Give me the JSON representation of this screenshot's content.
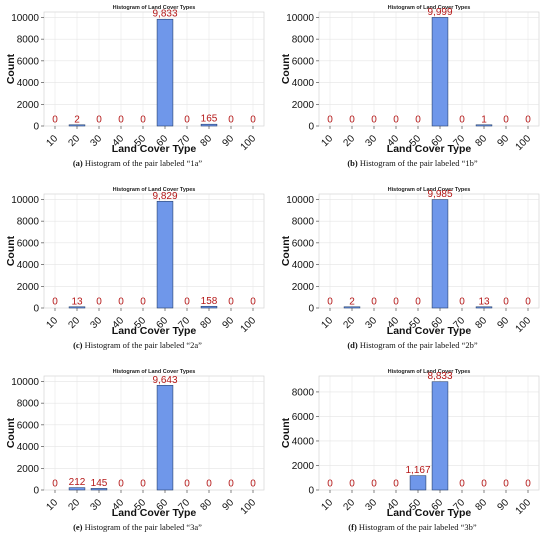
{
  "chart_data": [
    {
      "type": "bar",
      "title": "Histogram of Land Cover Types",
      "xlabel": "Land Cover Type",
      "ylabel": "Count",
      "categories": [
        "10",
        "20",
        "30",
        "40",
        "50",
        "60",
        "70",
        "80",
        "90",
        "100"
      ],
      "values": [
        0,
        2,
        0,
        0,
        0,
        9833,
        0,
        165,
        0,
        0
      ],
      "value_labels": [
        "0",
        "2",
        "0",
        "0",
        "0",
        "9,833",
        "0",
        "165",
        "0",
        "0"
      ],
      "yticks": [
        0,
        2000,
        4000,
        6000,
        8000,
        10000
      ],
      "ylim": [
        0,
        10500
      ],
      "grid": true,
      "caption_tag": "(a)",
      "caption": "Histogram of the pair labeled “1a”"
    },
    {
      "type": "bar",
      "title": "Histogram of Land Cover Types",
      "xlabel": "Land Cover Type",
      "ylabel": "Count",
      "categories": [
        "10",
        "20",
        "30",
        "40",
        "50",
        "60",
        "70",
        "80",
        "90",
        "100"
      ],
      "values": [
        0,
        0,
        0,
        0,
        0,
        9999,
        0,
        1,
        0,
        0
      ],
      "value_labels": [
        "0",
        "0",
        "0",
        "0",
        "0",
        "9,999",
        "0",
        "1",
        "0",
        "0"
      ],
      "yticks": [
        0,
        2000,
        4000,
        6000,
        8000,
        10000
      ],
      "ylim": [
        0,
        10500
      ],
      "grid": true,
      "caption_tag": "(b)",
      "caption": "Histogram of the pair labeled “1b”"
    },
    {
      "type": "bar",
      "title": "Histogram of Land Cover Types",
      "xlabel": "Land Cover Type",
      "ylabel": "Count",
      "categories": [
        "10",
        "20",
        "30",
        "40",
        "50",
        "60",
        "70",
        "80",
        "90",
        "100"
      ],
      "values": [
        0,
        13,
        0,
        0,
        0,
        9829,
        0,
        158,
        0,
        0
      ],
      "value_labels": [
        "0",
        "13",
        "0",
        "0",
        "0",
        "9,829",
        "0",
        "158",
        "0",
        "0"
      ],
      "yticks": [
        0,
        2000,
        4000,
        6000,
        8000,
        10000
      ],
      "ylim": [
        0,
        10500
      ],
      "grid": true,
      "caption_tag": "(c)",
      "caption": "Histogram of the pair labeled “2a”"
    },
    {
      "type": "bar",
      "title": "Histogram of Land Cover Types",
      "xlabel": "Land Cover Type",
      "ylabel": "Count",
      "categories": [
        "10",
        "20",
        "30",
        "40",
        "50",
        "60",
        "70",
        "80",
        "90",
        "100"
      ],
      "values": [
        0,
        2,
        0,
        0,
        0,
        9985,
        0,
        13,
        0,
        0
      ],
      "value_labels": [
        "0",
        "2",
        "0",
        "0",
        "0",
        "9,985",
        "0",
        "13",
        "0",
        "0"
      ],
      "yticks": [
        0,
        2000,
        4000,
        6000,
        8000,
        10000
      ],
      "ylim": [
        0,
        10500
      ],
      "grid": true,
      "caption_tag": "(d)",
      "caption": "Histogram of the pair labeled “2b”"
    },
    {
      "type": "bar",
      "title": "Histogram of Land Cover Types",
      "xlabel": "Land Cover Type",
      "ylabel": "Count",
      "categories": [
        "10",
        "20",
        "30",
        "40",
        "50",
        "60",
        "70",
        "80",
        "90",
        "100"
      ],
      "values": [
        0,
        212,
        145,
        0,
        0,
        9643,
        0,
        0,
        0,
        0
      ],
      "value_labels": [
        "0",
        "212",
        "145",
        "0",
        "0",
        "9,643",
        "0",
        "0",
        "0",
        "0"
      ],
      "yticks": [
        0,
        2000,
        4000,
        6000,
        8000,
        10000
      ],
      "ylim": [
        0,
        10500
      ],
      "grid": true,
      "caption_tag": "(e)",
      "caption": "Histogram of the pair labeled “3a”"
    },
    {
      "type": "bar",
      "title": "Histogram of Land Cover Types",
      "xlabel": "Land Cover Type",
      "ylabel": "Count",
      "categories": [
        "10",
        "20",
        "30",
        "40",
        "50",
        "60",
        "70",
        "80",
        "90",
        "100"
      ],
      "values": [
        0,
        0,
        0,
        0,
        1167,
        8833,
        0,
        0,
        0,
        0
      ],
      "value_labels": [
        "0",
        "0",
        "0",
        "0",
        "1,167",
        "8,833",
        "0",
        "0",
        "0",
        "0"
      ],
      "yticks": [
        0,
        2000,
        4000,
        6000,
        8000
      ],
      "ylim": [
        0,
        9300
      ],
      "grid": true,
      "caption_tag": "(f)",
      "caption": "Histogram of the pair labeled “3b”"
    }
  ],
  "colors": {
    "bar_fill": "#6f97ea",
    "bar_stroke": "#26406e",
    "value_label": "#b51818",
    "grid": "#e4e4e4",
    "axis": "#333333"
  }
}
